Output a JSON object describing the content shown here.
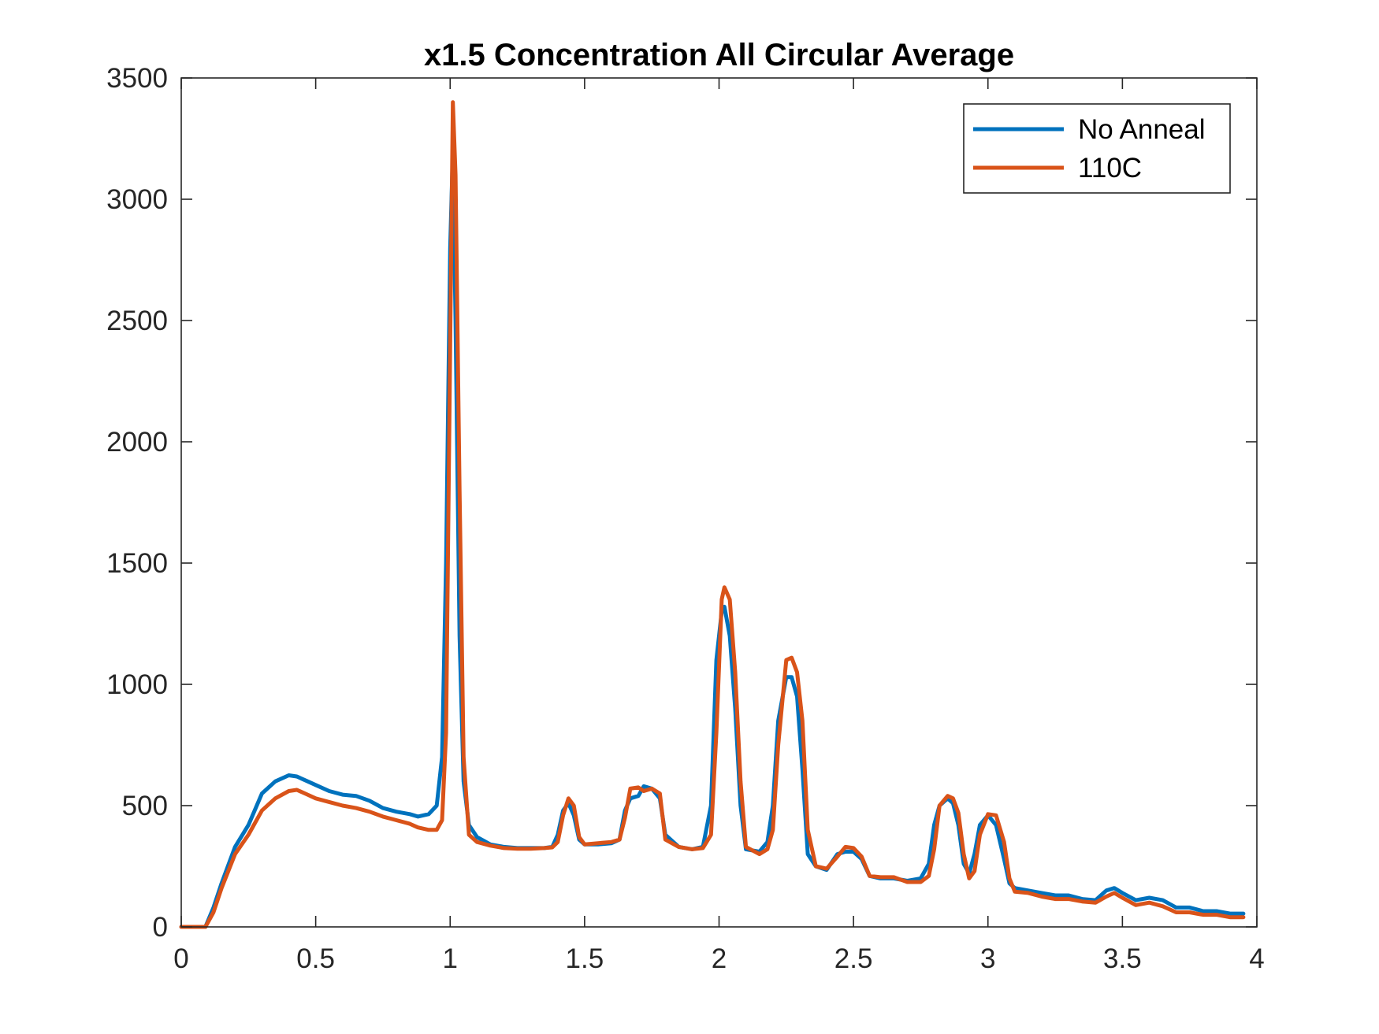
{
  "chart_data": {
    "type": "line",
    "title": "x1.5 Concentration All Circular Average",
    "xlabel": "",
    "ylabel": "",
    "xlim": [
      0,
      4
    ],
    "ylim": [
      0,
      3500
    ],
    "xticks": [
      0,
      0.5,
      1,
      1.5,
      2,
      2.5,
      3,
      3.5,
      4
    ],
    "yticks": [
      0,
      500,
      1000,
      1500,
      2000,
      2500,
      3000,
      3500
    ],
    "xtick_labels": [
      "0",
      "0.5",
      "1",
      "1.5",
      "2",
      "2.5",
      "3",
      "3.5",
      "4"
    ],
    "ytick_labels": [
      "0",
      "500",
      "1000",
      "1500",
      "2000",
      "2500",
      "3000",
      "3500"
    ],
    "grid": false,
    "legend_position": "top-right",
    "series": [
      {
        "name": "No Anneal",
        "color": "#0072BD",
        "x": [
          0,
          0.09,
          0.12,
          0.15,
          0.2,
          0.25,
          0.3,
          0.35,
          0.4,
          0.43,
          0.47,
          0.5,
          0.55,
          0.6,
          0.65,
          0.7,
          0.75,
          0.8,
          0.85,
          0.88,
          0.92,
          0.95,
          0.97,
          0.985,
          1.0,
          1.01,
          1.02,
          1.035,
          1.05,
          1.07,
          1.1,
          1.15,
          1.2,
          1.25,
          1.3,
          1.35,
          1.38,
          1.4,
          1.42,
          1.44,
          1.46,
          1.48,
          1.5,
          1.55,
          1.6,
          1.63,
          1.65,
          1.67,
          1.7,
          1.72,
          1.75,
          1.78,
          1.8,
          1.85,
          1.9,
          1.94,
          1.97,
          1.99,
          2.01,
          2.02,
          2.04,
          2.06,
          2.08,
          2.1,
          2.15,
          2.18,
          2.2,
          2.22,
          2.25,
          2.27,
          2.29,
          2.31,
          2.33,
          2.36,
          2.4,
          2.44,
          2.47,
          2.5,
          2.53,
          2.56,
          2.6,
          2.65,
          2.7,
          2.75,
          2.78,
          2.8,
          2.82,
          2.85,
          2.87,
          2.89,
          2.91,
          2.93,
          2.95,
          2.97,
          3.0,
          3.03,
          3.06,
          3.08,
          3.1,
          3.15,
          3.2,
          3.25,
          3.3,
          3.35,
          3.4,
          3.44,
          3.47,
          3.5,
          3.55,
          3.6,
          3.65,
          3.7,
          3.75,
          3.8,
          3.85,
          3.9,
          3.95
        ],
        "y": [
          0,
          0,
          80,
          180,
          330,
          420,
          550,
          600,
          625,
          620,
          600,
          585,
          560,
          545,
          540,
          520,
          490,
          475,
          465,
          455,
          465,
          500,
          700,
          1500,
          2800,
          3200,
          2500,
          1200,
          600,
          420,
          370,
          340,
          330,
          325,
          325,
          325,
          330,
          380,
          480,
          510,
          460,
          360,
          340,
          340,
          345,
          360,
          480,
          530,
          540,
          580,
          570,
          530,
          380,
          330,
          320,
          330,
          500,
          1100,
          1300,
          1320,
          1200,
          900,
          500,
          320,
          310,
          350,
          500,
          850,
          1030,
          1030,
          950,
          650,
          300,
          250,
          235,
          300,
          310,
          310,
          280,
          210,
          200,
          200,
          190,
          200,
          260,
          420,
          500,
          530,
          510,
          420,
          260,
          220,
          300,
          420,
          460,
          420,
          280,
          180,
          160,
          150,
          140,
          130,
          130,
          115,
          110,
          150,
          160,
          140,
          110,
          120,
          110,
          80,
          80,
          65,
          65,
          55,
          55
        ]
      },
      {
        "name": "110C",
        "color": "#D95319",
        "x": [
          0,
          0.09,
          0.12,
          0.15,
          0.2,
          0.25,
          0.3,
          0.35,
          0.4,
          0.43,
          0.47,
          0.5,
          0.55,
          0.6,
          0.65,
          0.7,
          0.75,
          0.8,
          0.85,
          0.88,
          0.92,
          0.95,
          0.97,
          0.985,
          1.0,
          1.01,
          1.02,
          1.035,
          1.05,
          1.07,
          1.1,
          1.15,
          1.2,
          1.25,
          1.3,
          1.35,
          1.38,
          1.4,
          1.42,
          1.44,
          1.46,
          1.48,
          1.5,
          1.55,
          1.6,
          1.63,
          1.65,
          1.67,
          1.7,
          1.72,
          1.75,
          1.78,
          1.8,
          1.85,
          1.9,
          1.94,
          1.97,
          1.99,
          2.01,
          2.02,
          2.04,
          2.06,
          2.08,
          2.1,
          2.15,
          2.18,
          2.2,
          2.22,
          2.25,
          2.27,
          2.29,
          2.31,
          2.33,
          2.36,
          2.4,
          2.44,
          2.47,
          2.5,
          2.53,
          2.56,
          2.6,
          2.65,
          2.7,
          2.75,
          2.78,
          2.8,
          2.82,
          2.85,
          2.87,
          2.89,
          2.91,
          2.93,
          2.95,
          2.97,
          3.0,
          3.03,
          3.06,
          3.08,
          3.1,
          3.15,
          3.2,
          3.25,
          3.3,
          3.35,
          3.4,
          3.44,
          3.47,
          3.5,
          3.55,
          3.6,
          3.65,
          3.7,
          3.75,
          3.8,
          3.85,
          3.9,
          3.95
        ],
        "y": [
          0,
          0,
          60,
          160,
          300,
          380,
          480,
          530,
          560,
          565,
          545,
          530,
          515,
          500,
          490,
          475,
          455,
          440,
          425,
          410,
          400,
          400,
          440,
          800,
          2400,
          3400,
          3100,
          1800,
          700,
          380,
          350,
          335,
          325,
          322,
          322,
          325,
          328,
          350,
          460,
          530,
          500,
          370,
          340,
          345,
          350,
          360,
          450,
          570,
          575,
          560,
          570,
          550,
          360,
          330,
          320,
          325,
          380,
          800,
          1350,
          1400,
          1350,
          1050,
          600,
          330,
          300,
          320,
          400,
          750,
          1100,
          1110,
          1050,
          850,
          400,
          250,
          240,
          290,
          330,
          325,
          290,
          210,
          205,
          205,
          185,
          185,
          210,
          320,
          500,
          540,
          530,
          470,
          300,
          200,
          230,
          380,
          465,
          460,
          350,
          200,
          145,
          140,
          125,
          115,
          115,
          105,
          100,
          125,
          140,
          120,
          90,
          100,
          85,
          60,
          60,
          50,
          50,
          40,
          40
        ]
      }
    ]
  }
}
